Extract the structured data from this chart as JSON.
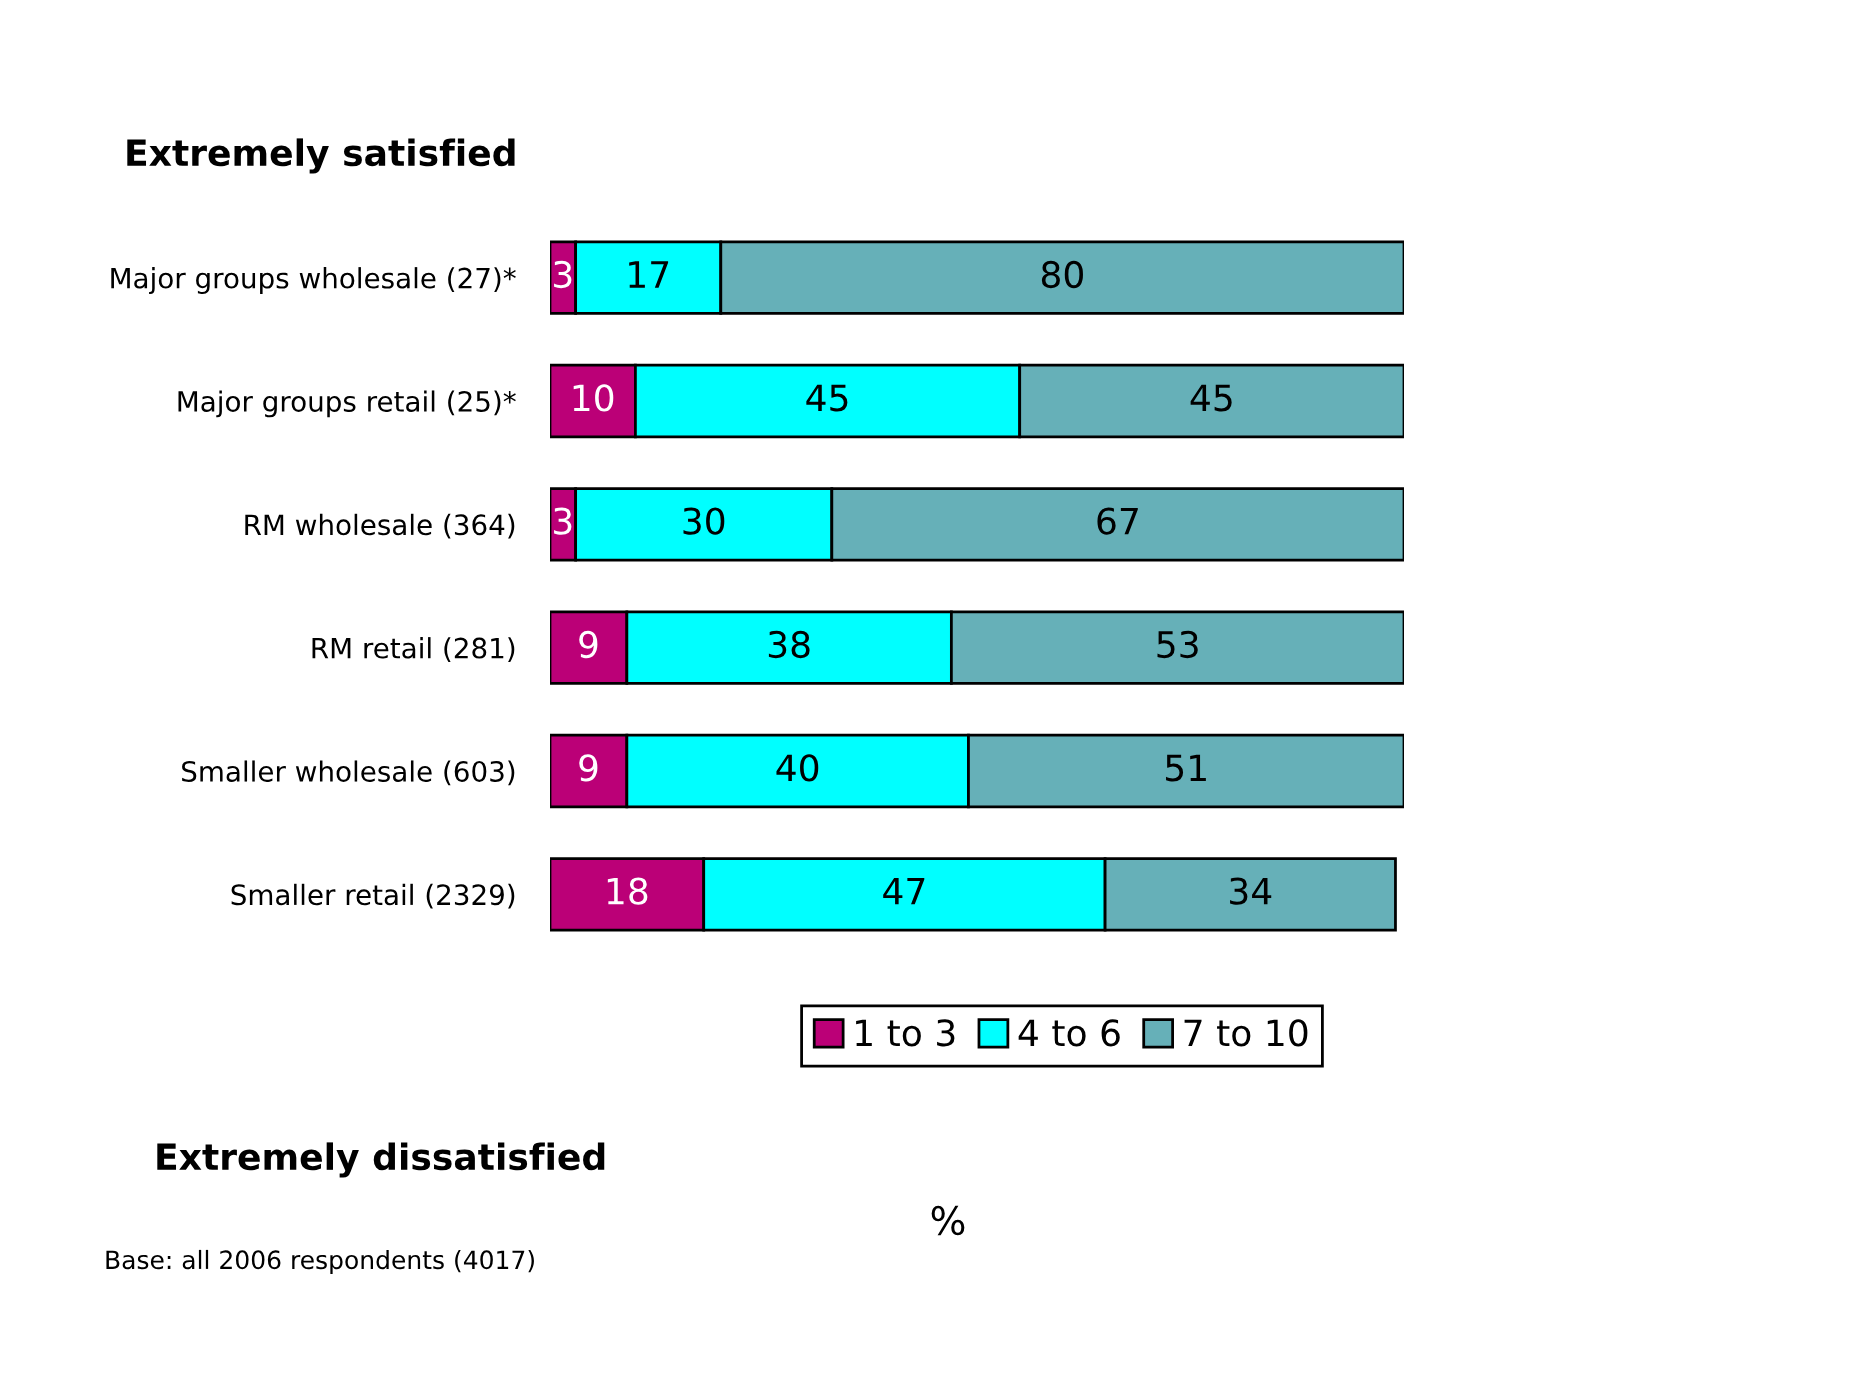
{
  "chart_data": {
    "type": "bar",
    "orientation": "horizontal",
    "stacked": true,
    "categories": [
      "Major groups wholesale (27)*",
      "Major groups retail (25)*",
      "RM wholesale (364)",
      "RM retail (281)",
      "Smaller wholesale (603)",
      "Smaller retail (2329)"
    ],
    "series": [
      {
        "name": "1 to 3",
        "color": "#bb0077",
        "values": [
          3,
          10,
          3,
          9,
          9,
          18
        ]
      },
      {
        "name": "4 to 6",
        "color": "#00ffff",
        "values": [
          17,
          45,
          30,
          38,
          40,
          47
        ]
      },
      {
        "name": "7 to 10",
        "color": "#66b0b8",
        "values": [
          80,
          45,
          67,
          53,
          51,
          34
        ]
      }
    ],
    "xlim": [
      0,
      100
    ],
    "data_labels": true,
    "legend": "bottom",
    "tick_labels": "y",
    "annotations": [
      "Extremely satisfied",
      "Extremely dissatisfied",
      "%",
      "Base: all 2006 respondents (4017)"
    ]
  }
}
